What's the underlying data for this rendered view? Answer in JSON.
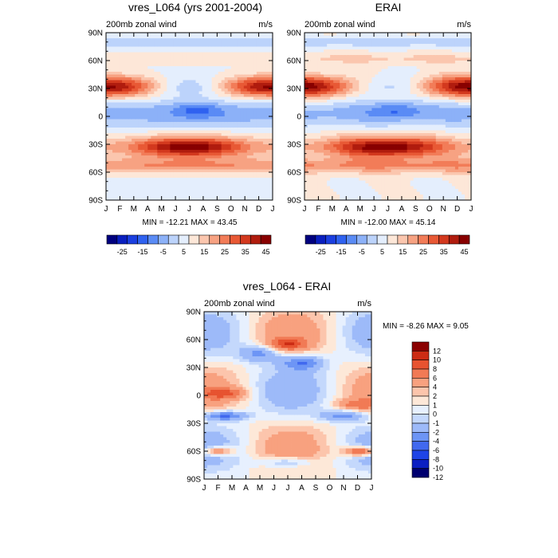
{
  "chart_data": [
    {
      "type": "heatmap",
      "id": "model",
      "title": "vres_L064 (yrs 2001-2004)",
      "left_label": "200mb zonal wind",
      "right_label": "m/s",
      "stats": "MIN = -12.21 MAX =  43.45",
      "x_ticks": [
        "J",
        "F",
        "M",
        "A",
        "M",
        "J",
        "J",
        "A",
        "S",
        "O",
        "N",
        "D",
        "J"
      ],
      "y_ticks": [
        "90N",
        "60N",
        "30N",
        "0",
        "30S",
        "60S",
        "90S"
      ],
      "colorbar_ticks": [
        "-25",
        "-15",
        "-5",
        "5",
        "15",
        "25",
        "35",
        "45"
      ]
    },
    {
      "type": "heatmap",
      "id": "obs",
      "title": "ERAI",
      "left_label": "200mb zonal wind",
      "right_label": "m/s",
      "stats": "MIN = -12.00 MAX =  45.14",
      "x_ticks": [
        "J",
        "F",
        "M",
        "A",
        "M",
        "J",
        "J",
        "A",
        "S",
        "O",
        "N",
        "D",
        "J"
      ],
      "y_ticks": [
        "90N",
        "60N",
        "30N",
        "0",
        "30S",
        "60S",
        "90S"
      ],
      "colorbar_ticks": [
        "-25",
        "-15",
        "-5",
        "5",
        "15",
        "25",
        "35",
        "45"
      ]
    },
    {
      "type": "heatmap",
      "id": "diff",
      "title": "vres_L064 - ERAI",
      "left_label": "200mb zonal wind",
      "right_label": "m/s",
      "stats": "MIN =  -8.26 MAX =   9.05",
      "x_ticks": [
        "J",
        "F",
        "M",
        "A",
        "M",
        "J",
        "J",
        "A",
        "S",
        "O",
        "N",
        "D",
        "J"
      ],
      "y_ticks": [
        "90N",
        "60N",
        "30N",
        "0",
        "30S",
        "60S",
        "90S"
      ],
      "colorbar_ticks": [
        "12",
        "10",
        "8",
        "6",
        "4",
        "2",
        "1",
        "0",
        "-1",
        "-2",
        "-4",
        "-6",
        "-8",
        "-10",
        "-12"
      ]
    }
  ],
  "colors": {
    "mean_scale": [
      "#00007f",
      "#0a1fbf",
      "#1b3fe0",
      "#2f62f0",
      "#5a8bf5",
      "#8cb1f8",
      "#bcd3fb",
      "#e4eefd",
      "#fde7d8",
      "#fbc6ae",
      "#f7a282",
      "#f27c58",
      "#e85935",
      "#d3391e",
      "#b01c0e",
      "#880000"
    ],
    "diff_scale": [
      "#00006f",
      "#0b1fc2",
      "#1f44e6",
      "#4169ef",
      "#6d95f5",
      "#9dbaf9",
      "#c4d8fc",
      "#e7f0fe",
      "#fde8d8",
      "#fcc5ac",
      "#f8a17f",
      "#f17a55",
      "#e75330",
      "#cc2c14",
      "#8b0000"
    ]
  }
}
